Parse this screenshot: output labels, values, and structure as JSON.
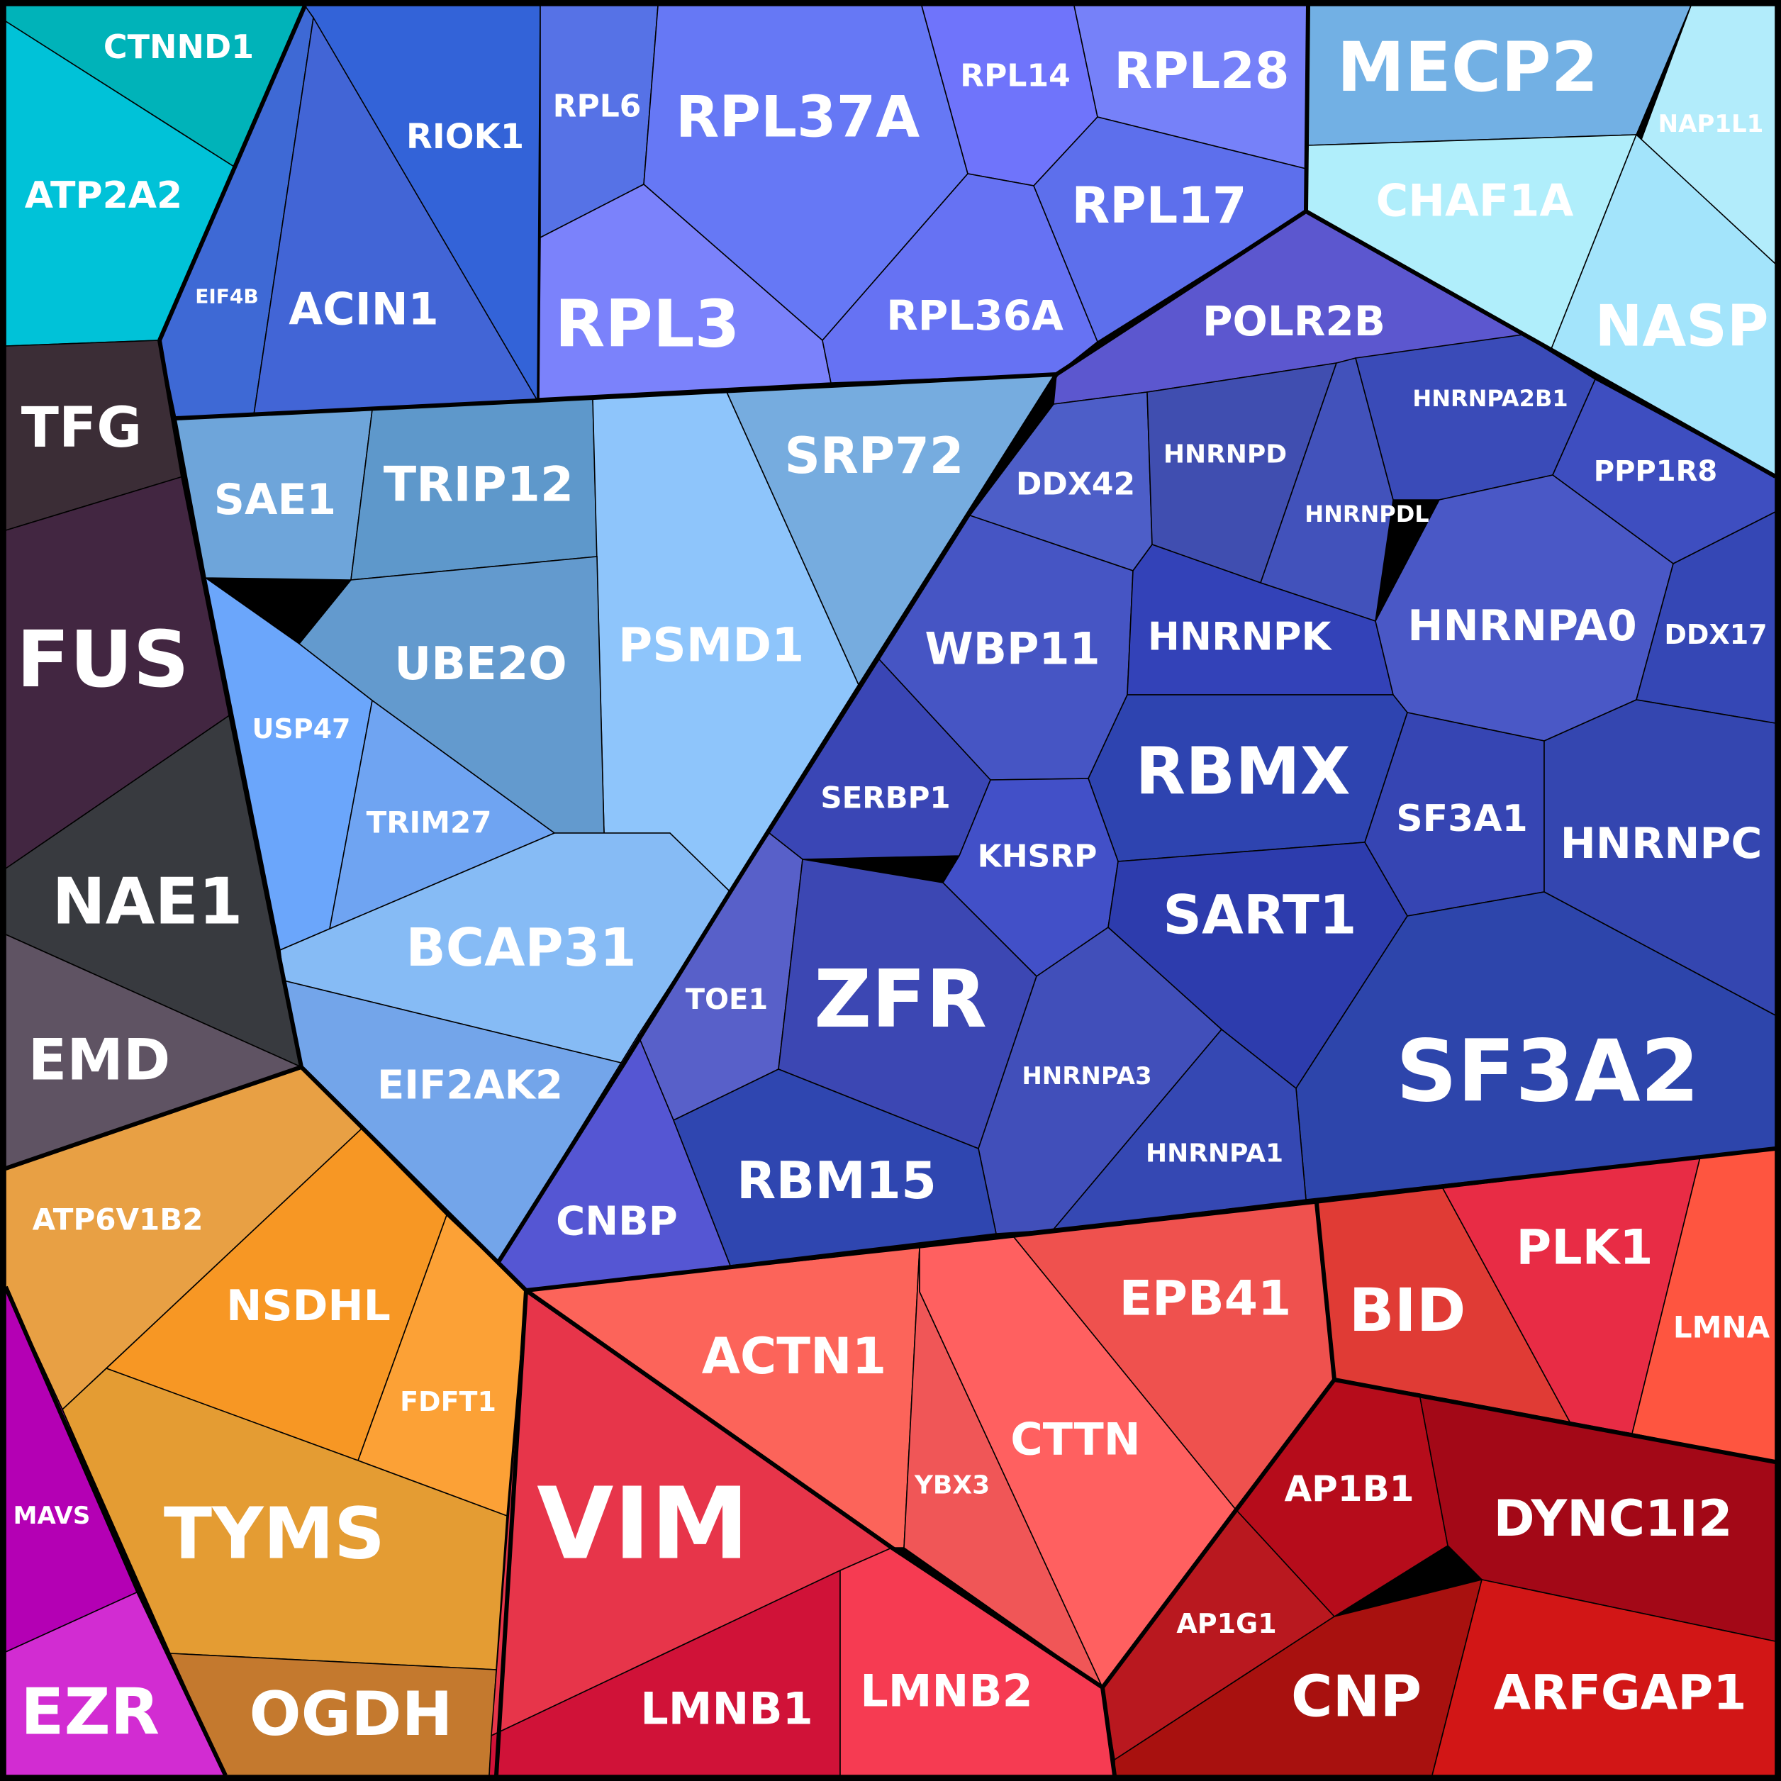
{
  "chart_data": {
    "type": "voronoi-treemap",
    "groups": [
      {
        "name": "",
        "color": "#00bfcf",
        "cells": [
          "CTNND1",
          "ATP2A2"
        ]
      },
      {
        "name": "",
        "color": "#3a2a35",
        "cells": [
          "TFG",
          "FUS",
          "NAE1",
          "EMD"
        ]
      },
      {
        "name": "",
        "color": "#e8963a",
        "cells": [
          "ATP6V1B2",
          "NSDHL",
          "FDFT1",
          "TYMS",
          "OGDH"
        ]
      },
      {
        "name": "",
        "color": "#b400b4",
        "cells": [
          "MAVS",
          "EZR"
        ]
      },
      {
        "name": "",
        "color": "#3f63d8",
        "cells": [
          "RIOK1",
          "EIF4B",
          "ACIN1"
        ]
      },
      {
        "name": "",
        "color": "#6b7af5",
        "cells": [
          "RPL6",
          "RPL37A",
          "RPL14",
          "RPL28",
          "RPL3",
          "RPL36A",
          "RPL17"
        ]
      },
      {
        "name": "",
        "color": "#9fe6f8",
        "cells": [
          "MECP2",
          "NAP1L1",
          "CHAF1A",
          "NASP"
        ]
      },
      {
        "name": "",
        "color": "#6fa6dc",
        "cells": [
          "SAE1",
          "TRIP12",
          "PSMD1",
          "SRP72",
          "UBE2O",
          "USP47",
          "TRIM27",
          "BCAP31",
          "EIF2AK2"
        ]
      },
      {
        "name": "",
        "color": "#3c4fc0",
        "cells": [
          "POLR2B",
          "DDX42",
          "HNRNPD",
          "HNRNPDL",
          "HNRNPA2B1",
          "PPP1R8",
          "WBP11",
          "HNRNPK",
          "HNRNPA0",
          "DDX17",
          "SERBP1",
          "RBMX",
          "KHSRP",
          "SF3A1",
          "HNRNPC",
          "SART1",
          "TOE1",
          "ZFR",
          "HNRNPA3",
          "SF3A2",
          "HNRNPA1",
          "CNBP",
          "RBM15"
        ]
      },
      {
        "name": "",
        "color": "#e8404e",
        "cells": [
          "ACTN1",
          "EPB41",
          "BID",
          "PLK1",
          "LMNA",
          "YBX3",
          "CTTN",
          "AP1B1",
          "DYNC1I2",
          "VIM",
          "AP1G1",
          "LMNB1",
          "LMNB2",
          "CNP",
          "ARFGAP1"
        ]
      }
    ]
  },
  "labels": {
    "CTNND1": "CTNND1",
    "ATP2A2": "ATP2A2",
    "TFG": "TFG",
    "FUS": "FUS",
    "NAE1": "NAE1",
    "EMD": "EMD",
    "ATP6V1B2": "ATP6V1B2",
    "NSDHL": "NSDHL",
    "FDFT1": "FDFT1",
    "TYMS": "TYMS",
    "OGDH": "OGDH",
    "MAVS": "MAVS",
    "EZR": "EZR",
    "RIOK1": "RIOK1",
    "EIF4B": "EIF4B",
    "ACIN1": "ACIN1",
    "RPL6": "RPL6",
    "RPL37A": "RPL37A",
    "RPL14": "RPL14",
    "RPL28": "RPL28",
    "RPL3": "RPL3",
    "RPL36A": "RPL36A",
    "RPL17": "RPL17",
    "MECP2": "MECP2",
    "NAP1L1": "NAP1L1",
    "CHAF1A": "CHAF1A",
    "NASP": "NASP",
    "SAE1": "SAE1",
    "TRIP12": "TRIP12",
    "PSMD1": "PSMD1",
    "SRP72": "SRP72",
    "UBE2O": "UBE2O",
    "USP47": "USP47",
    "TRIM27": "TRIM27",
    "BCAP31": "BCAP31",
    "EIF2AK2": "EIF2AK2",
    "POLR2B": "POLR2B",
    "DDX42": "DDX42",
    "HNRNPD": "HNRNPD",
    "HNRNPDL": "HNRNPDL",
    "HNRNPA2B1": "HNRNPA2B1",
    "PPP1R8": "PPP1R8",
    "WBP11": "WBP11",
    "HNRNPK": "HNRNPK",
    "HNRNPA0": "HNRNPA0",
    "DDX17": "DDX17",
    "SERBP1": "SERBP1",
    "RBMX": "RBMX",
    "KHSRP": "KHSRP",
    "SF3A1": "SF3A1",
    "HNRNPC": "HNRNPC",
    "SART1": "SART1",
    "TOE1": "TOE1",
    "ZFR": "ZFR",
    "HNRNPA3": "HNRNPA3",
    "SF3A2": "SF3A2",
    "HNRNPA1": "HNRNPA1",
    "CNBP": "CNBP",
    "RBM15": "RBM15",
    "ACTN1": "ACTN1",
    "EPB41": "EPB41",
    "BID": "BID",
    "PLK1": "PLK1",
    "LMNA": "LMNA",
    "YBX3": "YBX3",
    "CTTN": "CTTN",
    "AP1B1": "AP1B1",
    "DYNC1I2": "DYNC1I2",
    "VIM": "VIM",
    "AP1G1": "AP1G1",
    "LMNB1": "LMNB1",
    "LMNB2": "LMNB2",
    "CNP": "CNP",
    "ARFGAP1": "ARFGAP1"
  }
}
